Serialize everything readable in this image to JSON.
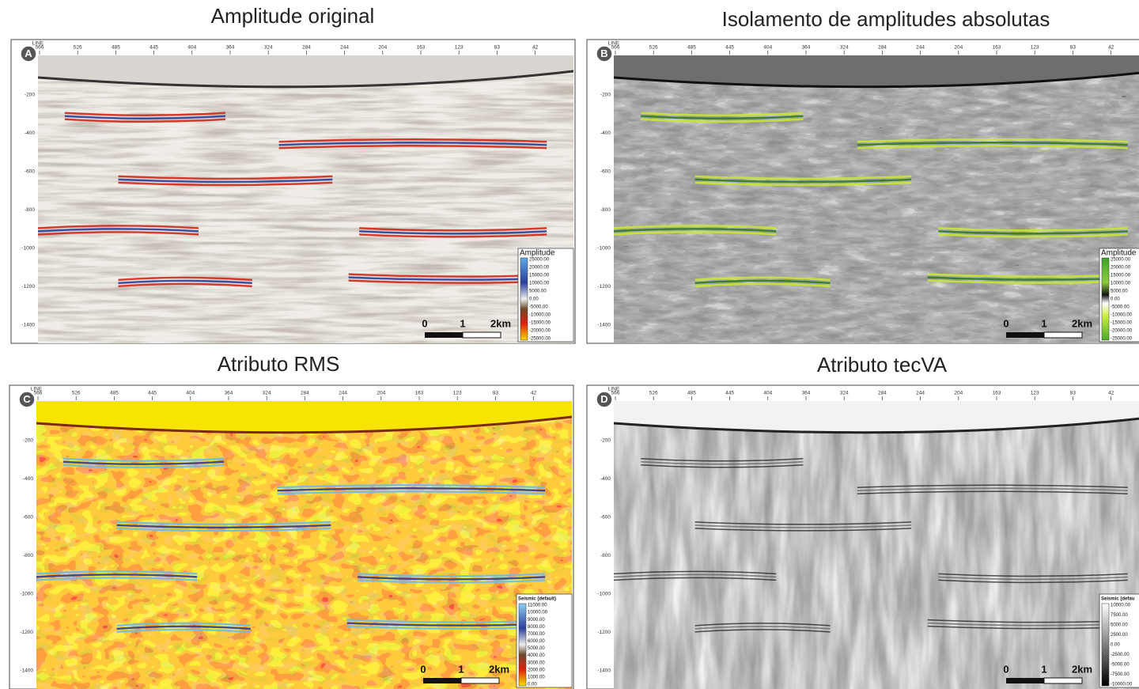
{
  "line_label": "LINE",
  "line_ticks": [
    "566",
    "526",
    "485",
    "445",
    "404",
    "364",
    "324",
    "284",
    "244",
    "204",
    "163",
    "123",
    "83",
    "42"
  ],
  "depth_ticks": [
    "-200",
    "-400",
    "-600",
    "-800",
    "-1000",
    "-1200",
    "-1400"
  ],
  "scale_bar": [
    "0",
    "1",
    "2km"
  ],
  "panels": [
    {
      "letter": "A",
      "title": "Amplitude original",
      "legend": {
        "title": "Amplitude",
        "labels": [
          "25000.00",
          "20000.00",
          "15000.00",
          "10000.00",
          "5000.00",
          "0.00",
          "-5000.00",
          "-10000.00",
          "-15000.00",
          "-20000.00",
          "-25000.00"
        ]
      }
    },
    {
      "letter": "B",
      "title": "Isolamento de amplitudes absolutas",
      "legend": {
        "title": "Amplitude",
        "labels": [
          "25000.00",
          "20000.00",
          "15000.00",
          "10000.00",
          "5000.00",
          "0.00",
          "-5000.00",
          "-10000.00",
          "-15000.00",
          "-20000.00",
          "-25000.00"
        ]
      }
    },
    {
      "letter": "C",
      "title": "Atributo RMS",
      "legend": {
        "title": "Seismic (default)",
        "labels": [
          "11000.00",
          "10000.00",
          "9000.00",
          "8000.00",
          "7000.00",
          "6000.00",
          "5000.00",
          "4000.00",
          "3000.00",
          "2000.00",
          "1000.00",
          "0.00"
        ]
      }
    },
    {
      "letter": "D",
      "title": "Atributo tecVA",
      "legend": {
        "title": "Seismic (defau",
        "labels": [
          "10000.00",
          "7500.00",
          "5000.00",
          "2500.00",
          "0.00",
          "-2500.00",
          "-5000.00",
          "-7500.00",
          "-10000.00"
        ]
      }
    }
  ]
}
